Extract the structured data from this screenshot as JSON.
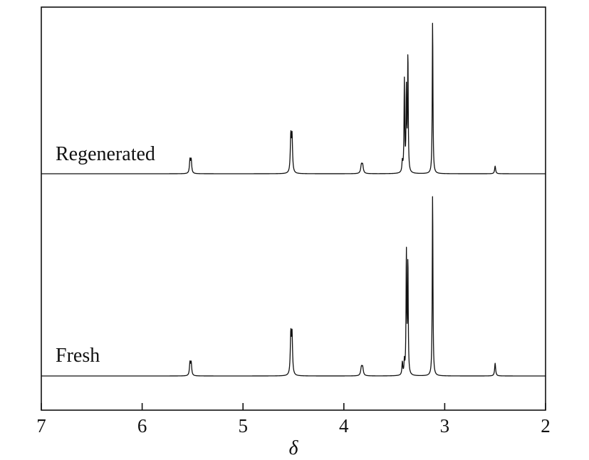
{
  "chart_data": {
    "type": "line",
    "title": "",
    "xlabel": "δ",
    "ylabel": "",
    "xlim": [
      7,
      2
    ],
    "x_reversed": true,
    "xticks": [
      "7",
      "6",
      "5",
      "4",
      "3",
      "2"
    ],
    "grid": false,
    "legend": "none",
    "series": [
      {
        "name": "Regenerated",
        "peaks": [
          {
            "x": 5.52,
            "height": 0.1,
            "width": 0.006,
            "mult": 2
          },
          {
            "x": 4.52,
            "height": 0.27,
            "width": 0.006,
            "mult": 2
          },
          {
            "x": 3.82,
            "height": 0.06,
            "width": 0.008,
            "mult": 2
          },
          {
            "x": 3.42,
            "height": 0.07,
            "width": 0.005,
            "mult": 1
          },
          {
            "x": 3.4,
            "height": 0.6,
            "width": 0.004,
            "mult": 1
          },
          {
            "x": 3.38,
            "height": 0.53,
            "width": 0.004,
            "mult": 1
          },
          {
            "x": 3.365,
            "height": 0.77,
            "width": 0.004,
            "mult": 1
          },
          {
            "x": 3.12,
            "height": 1.0,
            "width": 0.004,
            "mult": 1
          },
          {
            "x": 2.5,
            "height": 0.05,
            "width": 0.006,
            "mult": 1
          }
        ]
      },
      {
        "name": "Fresh",
        "peaks": [
          {
            "x": 5.52,
            "height": 0.08,
            "width": 0.006,
            "mult": 2
          },
          {
            "x": 4.52,
            "height": 0.25,
            "width": 0.006,
            "mult": 2
          },
          {
            "x": 3.82,
            "height": 0.05,
            "width": 0.008,
            "mult": 2
          },
          {
            "x": 3.42,
            "height": 0.07,
            "width": 0.005,
            "mult": 1
          },
          {
            "x": 3.4,
            "height": 0.07,
            "width": 0.004,
            "mult": 1
          },
          {
            "x": 3.38,
            "height": 0.67,
            "width": 0.004,
            "mult": 1
          },
          {
            "x": 3.365,
            "height": 0.62,
            "width": 0.004,
            "mult": 1
          },
          {
            "x": 3.12,
            "height": 1.0,
            "width": 0.004,
            "mult": 1
          },
          {
            "x": 2.5,
            "height": 0.07,
            "width": 0.006,
            "mult": 1
          }
        ]
      }
    ]
  }
}
